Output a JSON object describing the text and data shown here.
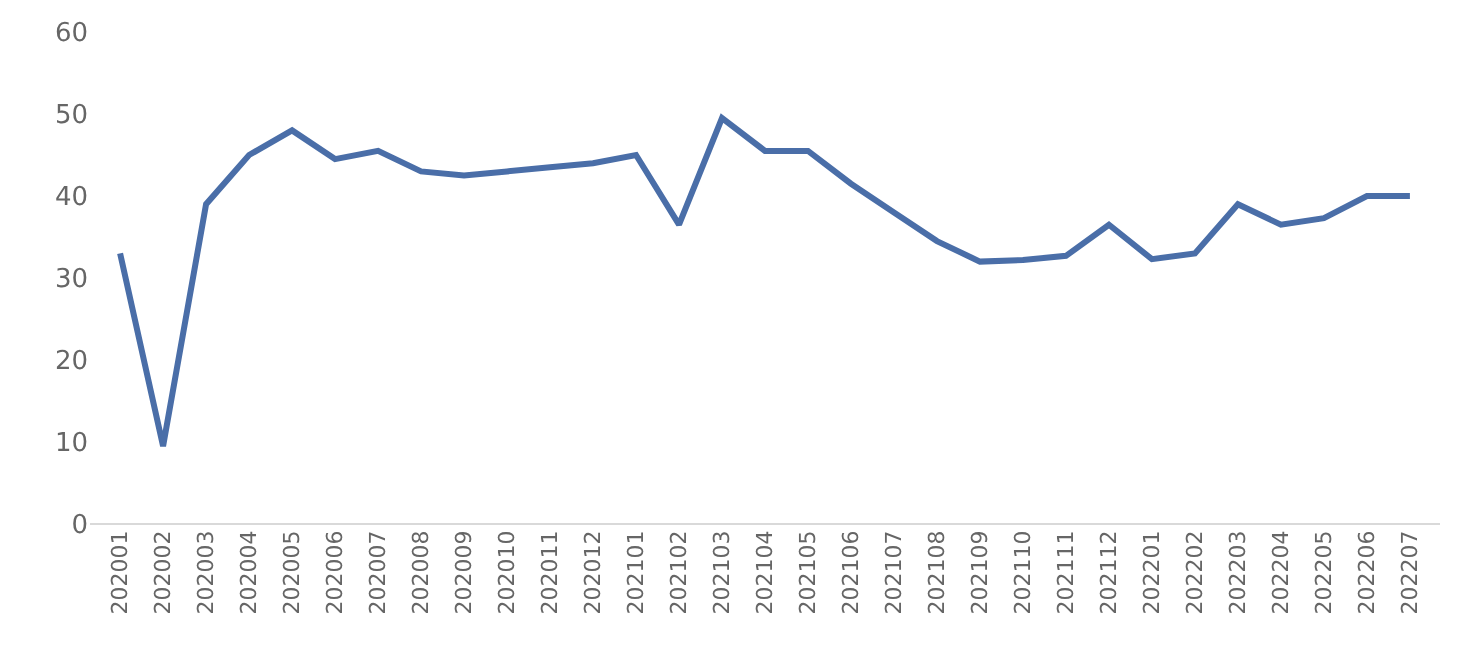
{
  "chart_data": {
    "type": "line",
    "categories": [
      "202001",
      "202002",
      "202003",
      "202004",
      "202005",
      "202006",
      "202007",
      "202008",
      "202009",
      "202010",
      "202011",
      "202012",
      "202101",
      "202102",
      "202103",
      "202104",
      "202105",
      "202106",
      "202107",
      "202108",
      "202109",
      "202110",
      "202111",
      "202112",
      "202201",
      "202202",
      "202203",
      "202204",
      "202205",
      "202206",
      "202207"
    ],
    "series": [
      {
        "color": "#4a6ea8",
        "values": [
          33,
          9.5,
          39,
          45,
          48,
          44.5,
          45.5,
          43,
          42.5,
          43,
          43.5,
          44,
          45,
          36.5,
          49.5,
          45.5,
          45.5,
          41.5,
          38,
          34.5,
          32,
          32.2,
          32.7,
          36.5,
          32.3,
          33,
          39,
          36.5,
          37.3,
          40,
          40
        ]
      }
    ],
    "ylim": [
      0,
      60
    ],
    "yticks": [
      0,
      10,
      20,
      30,
      40,
      50,
      60
    ],
    "marker": "none",
    "line_style": "solid"
  }
}
